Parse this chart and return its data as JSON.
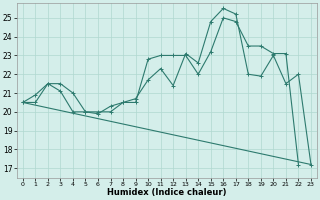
{
  "xlabel": "Humidex (Indice chaleur)",
  "ylabel": "",
  "bg_color": "#d4eeea",
  "line_color": "#2d7a6e",
  "grid_color": "#b0d8d0",
  "xlim": [
    -0.5,
    23.5
  ],
  "ylim": [
    16.5,
    25.8
  ],
  "yticks": [
    17,
    18,
    19,
    20,
    21,
    22,
    23,
    24,
    25
  ],
  "xticks": [
    0,
    1,
    2,
    3,
    4,
    5,
    6,
    7,
    8,
    9,
    10,
    11,
    12,
    13,
    14,
    15,
    16,
    17,
    18,
    19,
    20,
    21,
    22,
    23
  ],
  "line1_x": [
    0,
    1,
    2,
    3,
    4,
    5,
    6,
    7,
    8,
    9,
    10,
    11,
    12,
    13,
    14,
    15,
    16,
    17,
    18,
    19,
    20,
    21,
    22,
    23
  ],
  "line1_y": [
    20.5,
    20.9,
    21.5,
    21.1,
    20.0,
    20.0,
    19.9,
    20.3,
    20.5,
    20.7,
    21.7,
    22.3,
    21.4,
    23.1,
    22.6,
    24.8,
    25.5,
    25.2,
    22.0,
    21.9,
    23.0,
    21.5,
    22.0,
    17.2
  ],
  "line2_x": [
    0,
    1,
    2,
    3,
    4,
    5,
    6,
    7,
    8,
    9,
    10,
    11,
    12,
    13,
    14,
    15,
    16,
    17,
    18,
    19,
    20,
    21,
    22
  ],
  "line2_y": [
    20.5,
    20.5,
    21.5,
    21.5,
    21.0,
    20.0,
    20.0,
    20.0,
    20.5,
    20.5,
    22.8,
    23.0,
    23.0,
    23.0,
    22.0,
    23.2,
    25.0,
    24.8,
    23.5,
    23.5,
    23.1,
    23.1,
    17.2
  ],
  "line3_x": [
    0,
    23
  ],
  "line3_y": [
    20.5,
    17.2
  ]
}
